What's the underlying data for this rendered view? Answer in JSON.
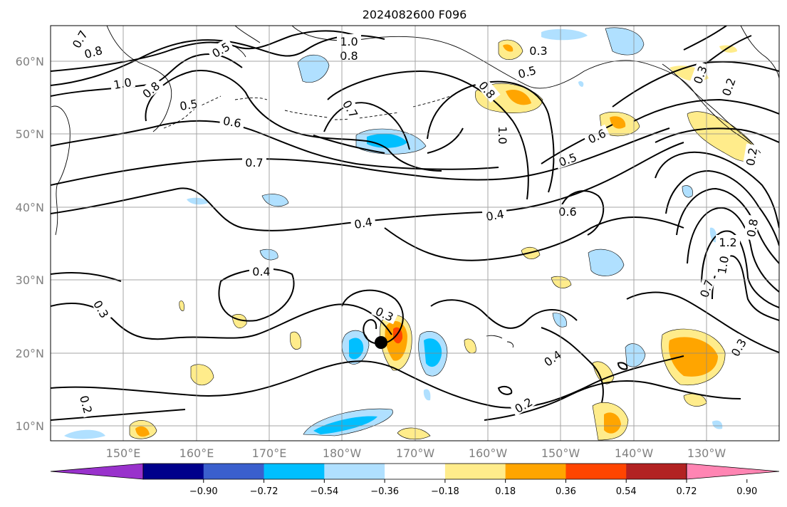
{
  "title": "2024082600 F096",
  "map": {
    "lat_ticks": [
      "60°N",
      "50°N",
      "40°N",
      "30°N",
      "20°N",
      "10°N"
    ],
    "lon_ticks": [
      "150°E",
      "160°E",
      "170°E",
      "180°W",
      "170°W",
      "160°W",
      "150°W",
      "140°W",
      "130°W"
    ],
    "marker": {
      "label": "storm-center",
      "lon": -174.5,
      "lat": 21.5
    }
  },
  "contours": {
    "line_color": "#000000",
    "labels": [
      "0.7",
      "0.8",
      "1.0",
      "0.8",
      "0.5",
      "0.5",
      "0.6",
      "1.0",
      "0.8",
      "0.3",
      "0.5",
      "0.7",
      "0.8",
      "1.0",
      "0.6",
      "0.5",
      "0.3",
      "0.2",
      "0.7",
      "0.4",
      "0.4",
      "0.6",
      "0.2",
      "0.8",
      "1.2",
      "1.0",
      "0.7",
      "0.4",
      "0.3",
      "0.3",
      "0.4",
      "0.3",
      "0.2",
      "0.2"
    ]
  },
  "colorbar": {
    "colors": [
      "#9932CC",
      "#00008B",
      "#3A5FCD",
      "#00BFFF",
      "#B0E0FF",
      "#FFFFFF",
      "#FFEC8B",
      "#FFA500",
      "#FF4500",
      "#B22222",
      "#FF85B3"
    ],
    "tick_labels": [
      "−0.90",
      "−0.72",
      "−0.54",
      "−0.36",
      "−0.18",
      "0.18",
      "0.36",
      "0.54",
      "0.72",
      "0.90"
    ]
  }
}
